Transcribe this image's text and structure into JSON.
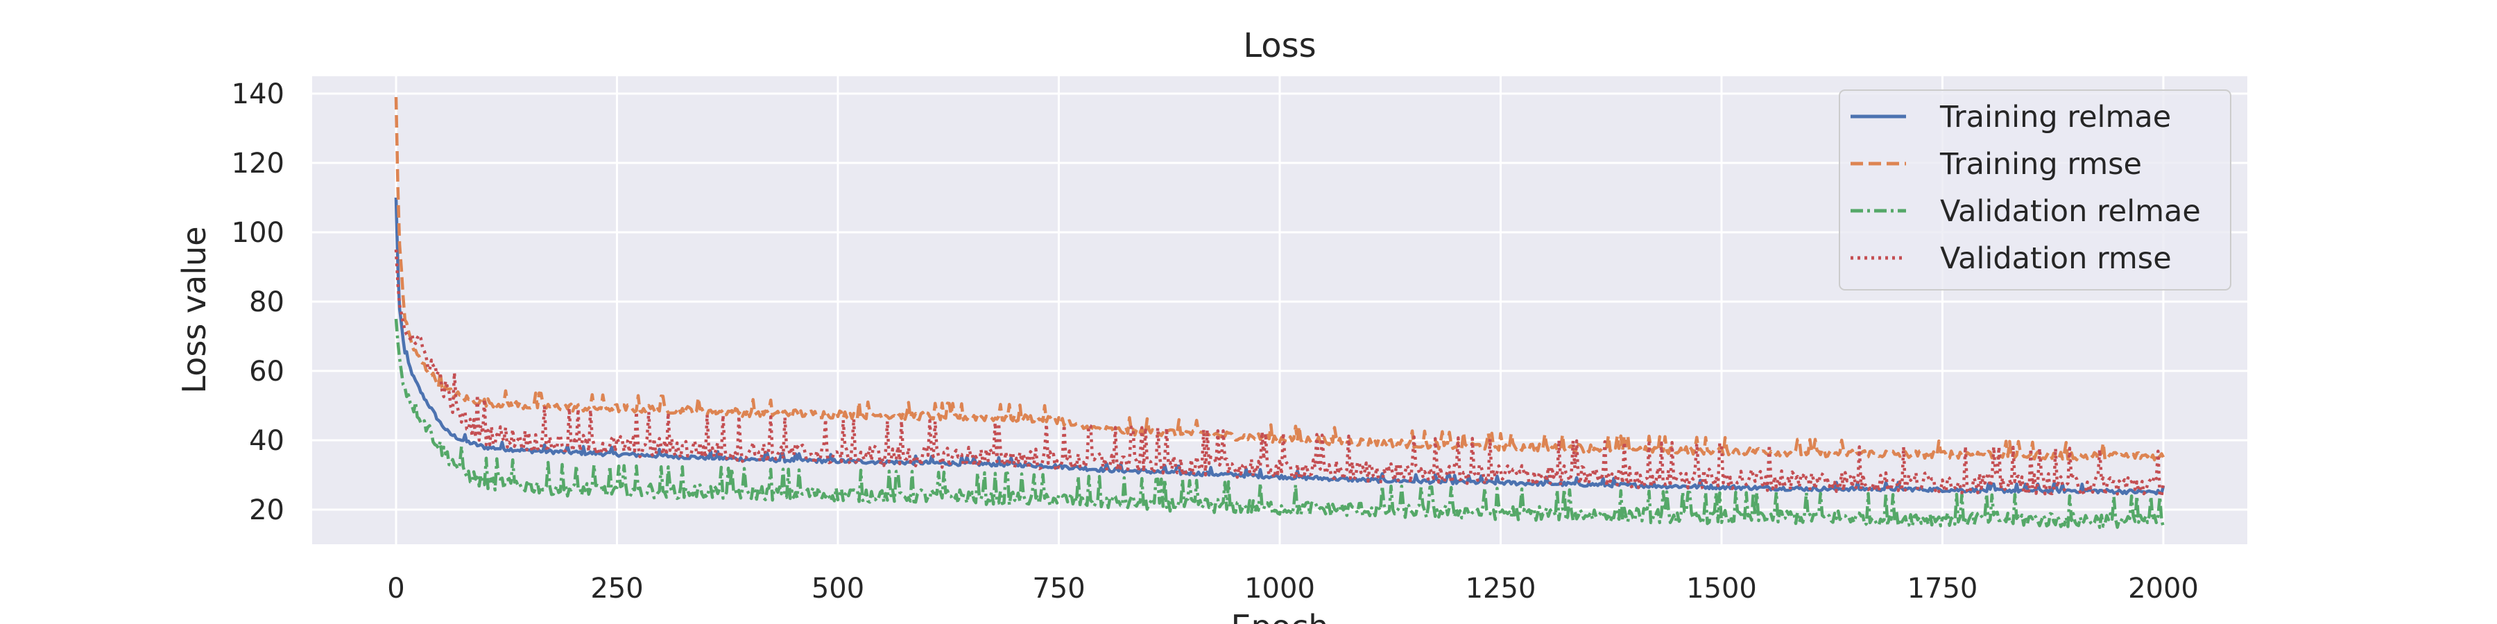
{
  "chart_data": {
    "type": "line",
    "title": "Loss",
    "xlabel": "Epoch",
    "ylabel": "Loss value",
    "xlim": [
      -95,
      2095
    ],
    "ylim": [
      10,
      145
    ],
    "xticks": [
      0,
      250,
      500,
      750,
      1000,
      1250,
      1500,
      1750,
      2000
    ],
    "yticks": [
      20,
      40,
      60,
      80,
      100,
      120,
      140
    ],
    "grid": true,
    "legend_position": "top-right",
    "background": "#EAEAF2",
    "series": [
      {
        "name": "Training relmae",
        "color": "#4C72B0",
        "dash": "solid",
        "points": [
          [
            0,
            110
          ],
          [
            3,
            80
          ],
          [
            10,
            65
          ],
          [
            20,
            58
          ],
          [
            30,
            53
          ],
          [
            40,
            49
          ],
          [
            50,
            45
          ],
          [
            60,
            42
          ],
          [
            75,
            40
          ],
          [
            100,
            38
          ],
          [
            150,
            37
          ],
          [
            200,
            36.5
          ],
          [
            300,
            35.5
          ],
          [
            400,
            34.5
          ],
          [
            500,
            34
          ],
          [
            600,
            33.5
          ],
          [
            700,
            33
          ],
          [
            750,
            32.5
          ],
          [
            800,
            31.5
          ],
          [
            900,
            30.5
          ],
          [
            1000,
            29.5
          ],
          [
            1100,
            28.5
          ],
          [
            1200,
            28
          ],
          [
            1300,
            27.5
          ],
          [
            1400,
            27
          ],
          [
            1500,
            26.5
          ],
          [
            1600,
            26
          ],
          [
            1700,
            26
          ],
          [
            1800,
            25.5
          ],
          [
            1900,
            25.5
          ],
          [
            2000,
            25
          ]
        ]
      },
      {
        "name": "Training rmse",
        "color": "#DD8452",
        "dash": "dashed",
        "points": [
          [
            0,
            139
          ],
          [
            3,
            100
          ],
          [
            10,
            75
          ],
          [
            20,
            66
          ],
          [
            30,
            62
          ],
          [
            40,
            59
          ],
          [
            50,
            56
          ],
          [
            60,
            54
          ],
          [
            80,
            52
          ],
          [
            100,
            51
          ],
          [
            150,
            50
          ],
          [
            200,
            49.5
          ],
          [
            300,
            49
          ],
          [
            400,
            48
          ],
          [
            500,
            47.5
          ],
          [
            600,
            47
          ],
          [
            700,
            46.5
          ],
          [
            750,
            46
          ],
          [
            770,
            44
          ],
          [
            800,
            43
          ],
          [
            900,
            42
          ],
          [
            1000,
            40.5
          ],
          [
            1100,
            39.5
          ],
          [
            1200,
            38.5
          ],
          [
            1300,
            38
          ],
          [
            1400,
            37.5
          ],
          [
            1500,
            37
          ],
          [
            1600,
            36.5
          ],
          [
            1700,
            36
          ],
          [
            1800,
            36
          ],
          [
            1900,
            35.5
          ],
          [
            2000,
            35.5
          ]
        ]
      },
      {
        "name": "Validation relmae",
        "color": "#55A868",
        "dash": "dashdot",
        "points": [
          [
            0,
            75
          ],
          [
            3,
            65
          ],
          [
            10,
            55
          ],
          [
            20,
            50
          ],
          [
            30,
            46
          ],
          [
            40,
            42
          ],
          [
            50,
            38
          ],
          [
            60,
            35
          ],
          [
            75,
            31
          ],
          [
            90,
            29
          ],
          [
            100,
            28
          ],
          [
            150,
            27
          ],
          [
            200,
            26
          ],
          [
            300,
            25.5
          ],
          [
            400,
            25
          ],
          [
            500,
            24.5
          ],
          [
            600,
            24
          ],
          [
            700,
            23.5
          ],
          [
            800,
            22.5
          ],
          [
            900,
            21.5
          ],
          [
            1000,
            20.5
          ],
          [
            1100,
            20
          ],
          [
            1200,
            19.5
          ],
          [
            1300,
            19
          ],
          [
            1400,
            18.5
          ],
          [
            1500,
            18
          ],
          [
            1600,
            18
          ],
          [
            1700,
            17.5
          ],
          [
            1800,
            17.5
          ],
          [
            1900,
            17
          ],
          [
            2000,
            17
          ]
        ]
      },
      {
        "name": "Validation rmse",
        "color": "#C44E52",
        "dash": "dotted",
        "points": [
          [
            0,
            95
          ],
          [
            3,
            80
          ],
          [
            10,
            73
          ],
          [
            20,
            70
          ],
          [
            30,
            66
          ],
          [
            40,
            62
          ],
          [
            50,
            58
          ],
          [
            60,
            52
          ],
          [
            70,
            48
          ],
          [
            80,
            45
          ],
          [
            100,
            42
          ],
          [
            150,
            40
          ],
          [
            200,
            39
          ],
          [
            300,
            38
          ],
          [
            400,
            37
          ],
          [
            500,
            36
          ],
          [
            600,
            35.5
          ],
          [
            700,
            35
          ],
          [
            800,
            34
          ],
          [
            900,
            33
          ],
          [
            1000,
            32
          ],
          [
            1100,
            31
          ],
          [
            1200,
            30.5
          ],
          [
            1300,
            30
          ],
          [
            1400,
            29.5
          ],
          [
            1500,
            29
          ],
          [
            1600,
            28.5
          ],
          [
            1700,
            28
          ],
          [
            1800,
            28
          ],
          [
            1900,
            27.5
          ],
          [
            2000,
            27
          ]
        ]
      }
    ]
  }
}
